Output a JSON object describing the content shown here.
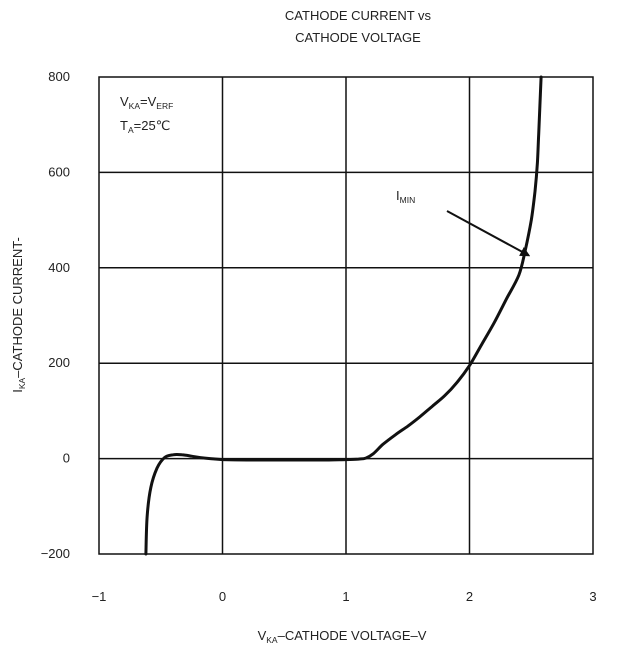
{
  "chart_data": {
    "type": "line",
    "title_lines": [
      "CATHODE CURRENT vs",
      "CATHODE VOLTAGE"
    ],
    "xlabel": {
      "main": "V",
      "sub": "KA",
      "rest": "–CATHODE VOLTAGE–V"
    },
    "ylabel": {
      "main": "I",
      "sub": "KA",
      "rest": "–CATHODE CURRENT-"
    },
    "xlim": [
      -1,
      3
    ],
    "ylim": [
      -200,
      800
    ],
    "xticks": [
      -1,
      0,
      1,
      2,
      3
    ],
    "xtick_labels": [
      "−1",
      "0",
      "1",
      "2",
      "3"
    ],
    "yticks": [
      -200,
      0,
      200,
      400,
      600,
      800
    ],
    "ytick_labels": [
      "−200",
      "0",
      "200",
      "400",
      "600",
      "800"
    ],
    "grid": true,
    "conditions": [
      {
        "main": "V",
        "sub": "KA",
        "mid": "=V",
        "sub2": "ERF",
        "rest": ""
      },
      {
        "main": "T",
        "sub": "A",
        "mid": "=25",
        "sub2": "",
        "rest": "℃"
      }
    ],
    "annotation": {
      "main": "I",
      "sub": "MIN",
      "points_to": [
        2.51,
        420
      ]
    },
    "series": [
      {
        "x": [
          -0.62,
          -0.61,
          -0.58,
          -0.53,
          -0.47,
          -0.4,
          -0.33,
          -0.25,
          -0.18,
          -0.1,
          0.0,
          0.2,
          0.4,
          0.6,
          0.8,
          1.0,
          1.1,
          1.16,
          1.22,
          1.3,
          1.4,
          1.5,
          1.6,
          1.7,
          1.8,
          1.9,
          2.0,
          2.1,
          2.2,
          2.3,
          2.4,
          2.45,
          2.5,
          2.53,
          2.55,
          2.56,
          2.57,
          2.58
        ],
        "y": [
          -200,
          -120,
          -60,
          -20,
          2,
          8,
          8,
          5,
          2,
          0,
          -2,
          -3,
          -3,
          -3,
          -3,
          -2,
          -1,
          1,
          10,
          30,
          50,
          68,
          88,
          110,
          132,
          160,
          195,
          240,
          285,
          335,
          385,
          435,
          500,
          560,
          620,
          680,
          740,
          800
        ]
      }
    ]
  }
}
